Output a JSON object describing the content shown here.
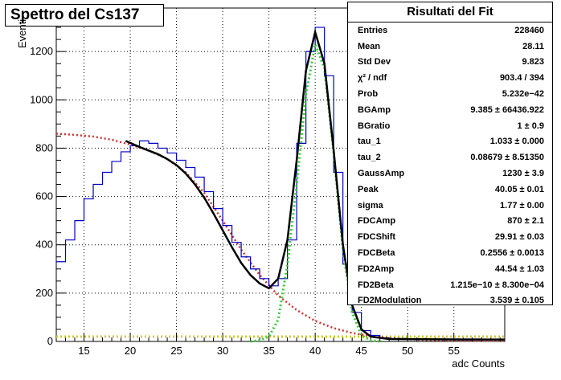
{
  "title": "Spettro del Cs137",
  "stats": {
    "header": "Risultati del Fit",
    "rows": [
      {
        "name": "Entries",
        "value": "228460"
      },
      {
        "name": "Mean",
        "value": "28.11"
      },
      {
        "name": "Std Dev",
        "value": "9.823"
      },
      {
        "name": "χ² / ndf",
        "value": "903.4 / 394"
      },
      {
        "name": "Prob",
        "value": "5.232e−42"
      },
      {
        "name": "BGAmp",
        "value": "9.385 ± 66436.922"
      },
      {
        "name": "BGratio",
        "value": "1 ± 0.9"
      },
      {
        "name": "tau_1",
        "value": "1.033 ± 0.000"
      },
      {
        "name": "tau_2",
        "value": "0.08679 ± 8.51350"
      },
      {
        "name": "GaussAmp",
        "value": "1230 ± 3.9"
      },
      {
        "name": "Peak",
        "value": "40.05 ± 0.01"
      },
      {
        "name": "sigma",
        "value": "1.77 ± 0.00"
      },
      {
        "name": "FDCAmp",
        "value": "870 ± 2.1"
      },
      {
        "name": "FDCShift",
        "value": "29.91 ± 0.03"
      },
      {
        "name": "FDCBeta",
        "value": "0.2556 ± 0.0013"
      },
      {
        "name": "FD2Amp",
        "value": "44.54 ± 1.03"
      },
      {
        "name": "FD2Beta",
        "value": "1.215e−10 ± 8.300e−04"
      },
      {
        "name": "FD2Modulation",
        "value": "3.539 ± 0.105"
      }
    ]
  },
  "chart_data": {
    "type": "line",
    "xlabel": "adc Counts",
    "ylabel": "Eventi",
    "xlim": [
      12,
      60.5
    ],
    "ylim": [
      0,
      1380
    ],
    "xticks": [
      15,
      20,
      25,
      30,
      35,
      40,
      45,
      50,
      55
    ],
    "yticks": [
      0,
      200,
      400,
      600,
      800,
      1000,
      1200
    ],
    "grid": true,
    "colors": {
      "histogram": "#0000cc",
      "fit_total": "#000000",
      "fermi_dirac": "#cc3333",
      "gaussian": "#33cc33",
      "background": "#cccc33"
    },
    "series": [
      {
        "role": "histogram",
        "x": [
          12,
          13,
          14,
          15,
          16,
          17,
          18,
          19,
          20,
          21,
          22,
          23,
          24,
          25,
          26,
          27,
          28,
          29,
          30,
          31,
          32,
          33,
          34,
          35,
          36,
          37,
          38,
          39,
          40,
          41,
          42,
          43,
          44,
          45,
          46,
          47,
          48,
          50,
          52,
          55,
          58,
          60.5
        ],
        "y": [
          330,
          420,
          500,
          590,
          650,
          700,
          745,
          785,
          810,
          830,
          820,
          800,
          780,
          750,
          720,
          680,
          620,
          550,
          480,
          410,
          350,
          300,
          260,
          230,
          260,
          420,
          820,
          1200,
          1300,
          1100,
          700,
          320,
          120,
          45,
          25,
          15,
          12,
          10,
          10,
          10,
          8,
          8
        ]
      },
      {
        "role": "fit_total",
        "x": [
          19.5,
          21,
          22,
          23,
          24,
          25,
          26,
          27,
          28,
          29,
          30,
          31,
          32,
          33,
          34,
          35,
          36,
          37,
          38,
          39,
          40,
          41,
          42,
          43,
          44,
          45,
          46,
          48,
          52,
          56,
          60.5
        ],
        "y": [
          830,
          805,
          790,
          775,
          755,
          730,
          695,
          650,
          595,
          530,
          460,
          390,
          325,
          275,
          240,
          220,
          260,
          420,
          750,
          1120,
          1280,
          1150,
          790,
          400,
          150,
          50,
          20,
          10,
          9,
          8,
          8
        ]
      },
      {
        "role": "fermi_dirac",
        "x": [
          12,
          14,
          16,
          18,
          20,
          22,
          24,
          26,
          28,
          30,
          32,
          34,
          36,
          38,
          40,
          42,
          44,
          46,
          48,
          50,
          52,
          56,
          60.5
        ],
        "y": [
          860,
          855,
          848,
          835,
          815,
          790,
          755,
          700,
          615,
          500,
          380,
          275,
          190,
          130,
          85,
          55,
          35,
          22,
          14,
          9,
          6,
          3,
          2
        ]
      },
      {
        "role": "gaussian",
        "x": [
          33,
          34,
          35,
          36,
          37,
          38,
          39,
          40,
          41,
          42,
          43,
          44,
          45,
          46,
          47
        ],
        "y": [
          0,
          5,
          20,
          90,
          320,
          650,
          1020,
          1230,
          1130,
          780,
          380,
          120,
          25,
          5,
          0
        ]
      },
      {
        "role": "background",
        "x": [
          12,
          60.5
        ],
        "y": [
          20,
          20
        ]
      }
    ]
  }
}
